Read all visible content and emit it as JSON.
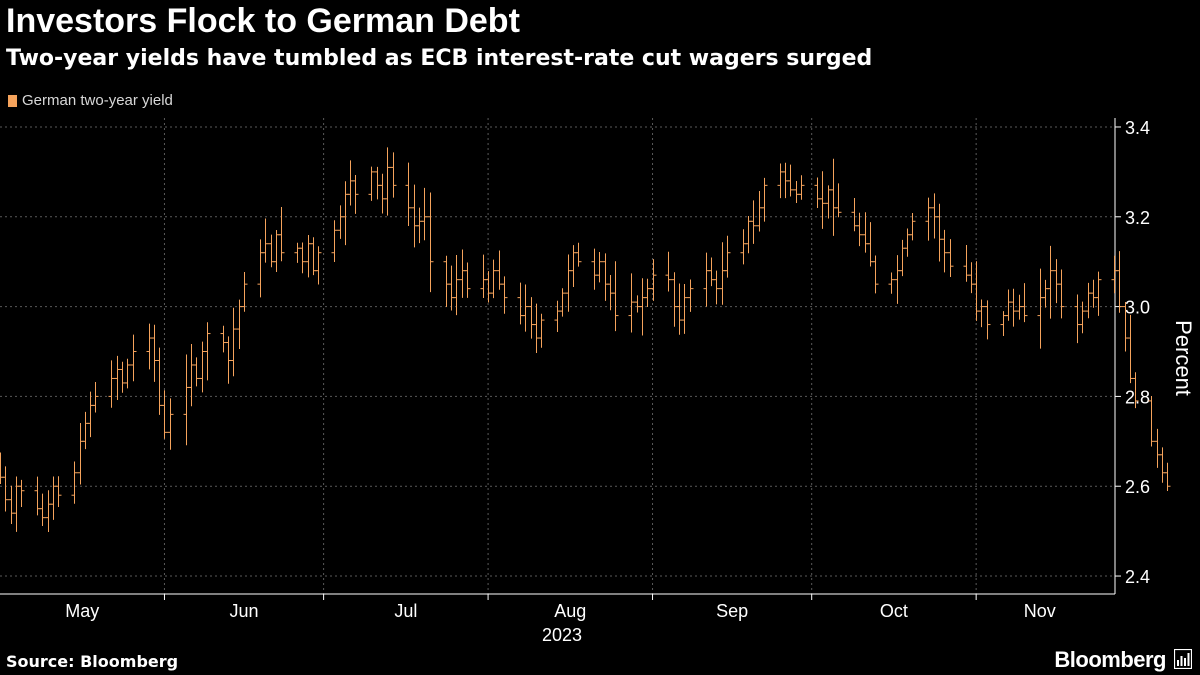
{
  "header": {
    "title": "Investors Flock to German Debt",
    "subtitle": "Two-year yields have tumbled as ECB interest-rate cut wagers surged"
  },
  "legend": {
    "label": "German two-year yield"
  },
  "footer": {
    "source": "Source: Bloomberg",
    "brand": "Bloomberg"
  },
  "colors": {
    "series": "#f5a35c",
    "background": "#000000",
    "grid": "#555555",
    "text": "#ffffff"
  },
  "chart_data": {
    "type": "line",
    "style": "ohlc-bars",
    "title": "Investors Flock to German Debt",
    "subtitle": "Two-year yields have tumbled as ECB interest-rate cut wagers surged",
    "xlabel": "2023",
    "ylabel": "Percent",
    "ylim": [
      2.36,
      3.42
    ],
    "yticks": [
      2.4,
      2.6,
      2.8,
      3.0,
      3.2,
      3.4
    ],
    "ytick_labels": [
      "2.4",
      "2.6",
      "2.8",
      "3.0",
      "3.2",
      "3.4"
    ],
    "xticks": [
      "May",
      "Jun",
      "Jul",
      "Aug",
      "Sep",
      "Oct",
      "Nov"
    ],
    "year_label": "2023",
    "grid": true,
    "legend_position": "top-left",
    "series": [
      {
        "name": "German two-year yield",
        "start": "2023-05-01",
        "end": "2023-11-23",
        "values": [
          2.62,
          2.57,
          2.54,
          2.6,
          2.59,
          2.55,
          2.53,
          2.56,
          2.6,
          2.58,
          2.63,
          2.7,
          2.74,
          2.78,
          2.8,
          2.84,
          2.86,
          2.83,
          2.87,
          2.9,
          2.93,
          2.88,
          2.78,
          2.72,
          2.76,
          2.82,
          2.87,
          2.84,
          2.9,
          2.94,
          2.92,
          2.88,
          2.95,
          3.0,
          3.05,
          3.12,
          3.14,
          3.1,
          3.16,
          3.12,
          3.13,
          3.1,
          3.14,
          3.08,
          3.12,
          3.17,
          3.2,
          3.25,
          3.28,
          3.25,
          3.3,
          3.27,
          3.24,
          3.31,
          3.27,
          3.22,
          3.18,
          3.19,
          3.2,
          3.1,
          3.05,
          3.02,
          3.06,
          3.08,
          3.04,
          3.06,
          3.03,
          3.08,
          3.05,
          3.02,
          2.98,
          3.0,
          2.96,
          2.93,
          2.97,
          2.99,
          3.03,
          3.08,
          3.12,
          3.1,
          3.07,
          3.1,
          3.05,
          3.03,
          2.98,
          3.01,
          3.0,
          3.02,
          3.04,
          3.07,
          3.06,
          3.0,
          2.97,
          3.02,
          3.04,
          3.08,
          3.06,
          3.04,
          3.08,
          3.12,
          3.14,
          3.19,
          3.18,
          3.22,
          3.27,
          3.3,
          3.28,
          3.26,
          3.25,
          3.27,
          3.24,
          3.23,
          3.26,
          3.22,
          3.21,
          3.18,
          3.16,
          3.14,
          3.1,
          3.05,
          3.06,
          3.08,
          3.13,
          3.16,
          3.19,
          3.22,
          3.2,
          3.15,
          3.12,
          3.09,
          3.07,
          3.05,
          2.99,
          3.0,
          2.96,
          2.98,
          3.01,
          2.99,
          3.0,
          2.98,
          3.02,
          3.04,
          3.08,
          3.05,
          3.0,
          2.96,
          2.99,
          3.03,
          3.02,
          3.06,
          3.08,
          3.0,
          2.93,
          2.84,
          2.79,
          2.7,
          2.67,
          2.63,
          2.6
        ]
      }
    ]
  }
}
